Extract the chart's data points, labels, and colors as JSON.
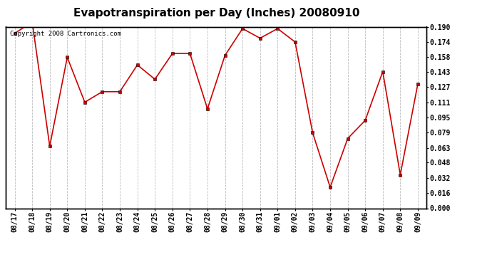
{
  "title": "Evapotranspiration per Day (Inches) 20080910",
  "copyright": "Copyright 2008 Cartronics.com",
  "x_labels": [
    "08/17",
    "08/18",
    "08/19",
    "08/20",
    "08/21",
    "08/22",
    "08/23",
    "08/24",
    "08/25",
    "08/26",
    "08/27",
    "08/28",
    "08/29",
    "08/30",
    "08/31",
    "09/01",
    "09/02",
    "09/03",
    "09/04",
    "09/05",
    "09/06",
    "09/07",
    "09/08",
    "09/09"
  ],
  "y_values": [
    0.183,
    0.195,
    0.065,
    0.158,
    0.111,
    0.122,
    0.122,
    0.15,
    0.135,
    0.162,
    0.162,
    0.104,
    0.16,
    0.188,
    0.178,
    0.188,
    0.174,
    0.079,
    0.022,
    0.073,
    0.092,
    0.143,
    0.035,
    0.13
  ],
  "y_min": 0.0,
  "y_max": 0.19,
  "y_ticks": [
    0.0,
    0.016,
    0.032,
    0.048,
    0.063,
    0.079,
    0.095,
    0.111,
    0.127,
    0.143,
    0.158,
    0.174,
    0.19
  ],
  "line_color": "#cc0000",
  "marker_color": "#000000",
  "bg_color": "#ffffff",
  "grid_color": "#aaaaaa",
  "title_fontsize": 11,
  "tick_fontsize": 7,
  "copyright_fontsize": 6.5
}
